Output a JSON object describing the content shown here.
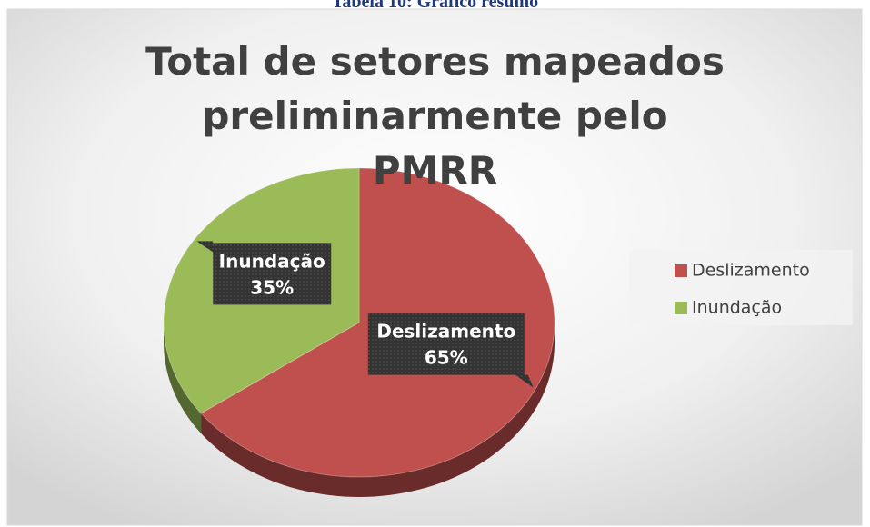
{
  "caption": "Tabela 10: Gráfico resumo",
  "chart_data": {
    "type": "pie3d",
    "title": "Total de setores mapeados preliminarmente pelo PMRR",
    "categories": [
      "Deslizamento",
      "Inundação"
    ],
    "values": [
      65,
      35
    ],
    "value_labels": [
      "65%",
      "35%"
    ],
    "colors": [
      "#c0504d",
      "#9bbb59"
    ],
    "legend": "right"
  }
}
